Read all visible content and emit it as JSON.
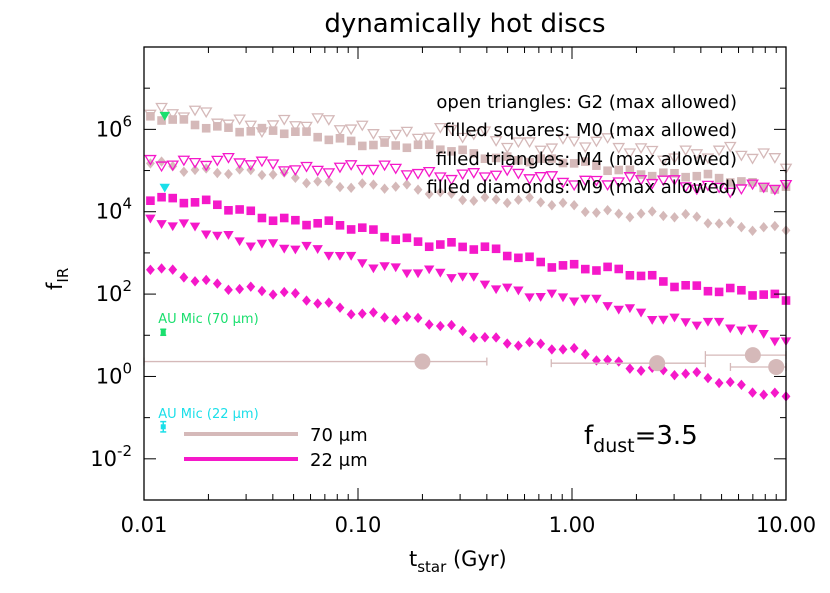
{
  "chart_data": {
    "type": "scatter",
    "title": "dynamically hot discs",
    "xlabel_main": "t",
    "xlabel_sub": "star",
    "xlabel_tail": " (Gyr)",
    "ylabel_main": "f",
    "ylabel_sub": "IR",
    "xscale": "log",
    "yscale": "log",
    "xlim": [
      0.01,
      10
    ],
    "ylim": [
      0.001,
      100000000
    ],
    "x_ticks": [
      {
        "value": 0.01,
        "label": "0.01"
      },
      {
        "value": 0.1,
        "label": "0.10"
      },
      {
        "value": 1,
        "label": "1.00"
      },
      {
        "value": 10,
        "label": "10.00"
      }
    ],
    "y_ticks": [
      {
        "value": 0.01,
        "base": "10",
        "exp": "-2"
      },
      {
        "value": 1,
        "base": "10",
        "exp": "0"
      },
      {
        "value": 100,
        "base": "10",
        "exp": "2"
      },
      {
        "value": 10000,
        "base": "10",
        "exp": "4"
      },
      {
        "value": 1000000,
        "base": "10",
        "exp": "6"
      }
    ],
    "series": [
      {
        "band": "70",
        "marker": "open-triangle",
        "color": "#d5b9b9",
        "start": 2300000,
        "end": 180000,
        "jitter": 0.22
      },
      {
        "band": "70",
        "marker": "filled-square",
        "color": "#d5b9b9",
        "start": 1800000,
        "end": 40000,
        "jitter": 0.1
      },
      {
        "band": "70",
        "marker": "filled-diamond",
        "color": "#d5b9b9",
        "start": 150000,
        "end": 3800,
        "jitter": 0.12
      },
      {
        "band": "22",
        "marker": "open-triangle",
        "color": "#f518c9",
        "start": 180000,
        "end": 35000,
        "jitter": 0.14
      },
      {
        "band": "22",
        "marker": "filled-square",
        "color": "#f518c9",
        "start": 24000,
        "end": 70,
        "jitter": 0.12
      },
      {
        "band": "22",
        "marker": "filled-triangle",
        "color": "#f518c9",
        "start": 5500,
        "end": 8,
        "jitter": 0.13
      },
      {
        "band": "22",
        "marker": "filled-diamond",
        "color": "#f518c9",
        "start": 400,
        "end": 0.35,
        "jitter": 0.12
      }
    ],
    "highlight_markers": [
      {
        "x": 0.0125,
        "y": 2100000,
        "color": "#1adf6e"
      },
      {
        "x": 0.0125,
        "y": 38000,
        "color": "#1adfe9"
      }
    ],
    "obs_points": [
      {
        "x": 0.2,
        "y": 2.3,
        "xerr": [
          0.01,
          0.4
        ]
      },
      {
        "x": 2.5,
        "y": 2.1,
        "xerr": [
          0.8,
          4.2
        ]
      },
      {
        "x": 7.0,
        "y": 3.3,
        "xerr": [
          4.2,
          10
        ]
      },
      {
        "x": 9.0,
        "y": 1.7,
        "xerr": [
          5.5,
          10
        ]
      }
    ],
    "obs_color": "#d5b9b9",
    "au_mic": [
      {
        "label": "AU Mic (70 μm)",
        "x": 0.0123,
        "y": 12,
        "err": [
          10,
          14
        ],
        "color": "#1adf6e"
      },
      {
        "label": "AU Mic (22 μm)",
        "x": 0.0123,
        "y": 0.06,
        "err": [
          0.045,
          0.08
        ],
        "color": "#1adfe9"
      }
    ],
    "annotations": [
      "open triangles: G2 (max allowed)",
      "filled squares: M0 (max allowed)",
      "filled triangles: M4 (max allowed)",
      "filled diamonds: M9 (max allowed)"
    ],
    "legend": [
      {
        "label": "70 μm",
        "color": "#d5b9b9"
      },
      {
        "label": "22 μm",
        "color": "#f518c9"
      }
    ],
    "fdust": {
      "main": "f",
      "sub": "dust",
      "value": "=3.5"
    }
  }
}
